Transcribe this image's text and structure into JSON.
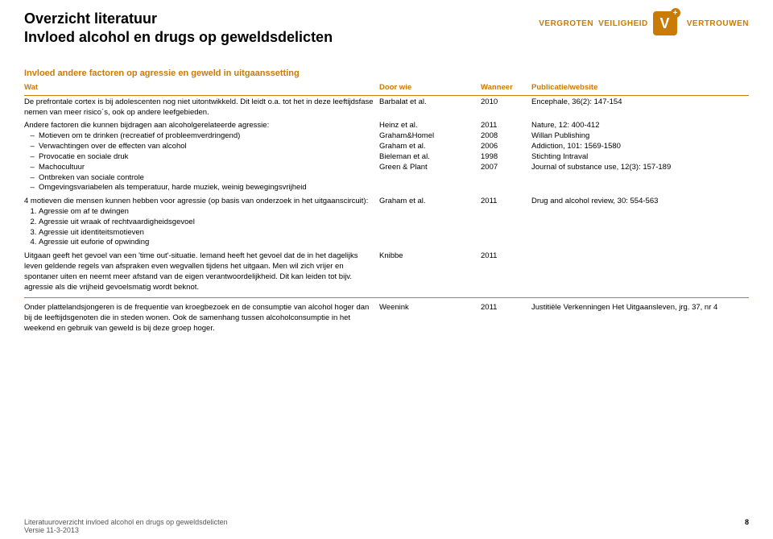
{
  "header": {
    "title_line1": "Overzicht literatuur",
    "title_line2": "Invloed alcohol en drugs op geweldsdelicten",
    "brand_left": "VERGROTEN",
    "brand_mid": "VEILIGHEID",
    "brand_right": "VERTROUWEN",
    "v_glyph": "V",
    "plus_glyph": "+"
  },
  "section_title": "Invloed andere factoren op agressie en geweld in uitgaanssetting",
  "columns": {
    "wat": "Wat",
    "door_wie": "Door wie",
    "wanneer": "Wanneer",
    "pub": "Publicatie/website"
  },
  "rows": [
    {
      "wat_pre": "De prefrontale cortex is bij adolescenten nog niet uitontwikkeld. Dit leidt o.a. tot het in deze leeftijdsfase nemen van meer risico´s, ook op andere leefgebieden.",
      "door": "Barbalat et al.",
      "wanneer": "2010",
      "pub": "Encephale, 36(2): 147-154"
    },
    {
      "wat_pre": "Andere factoren die kunnen bijdragen aan alcoholgerelateerde agressie:",
      "bullets": [
        "Motieven om te drinken (recreatief of probleemverdringend)",
        "Verwachtingen over de effecten van alcohol",
        "Provocatie en sociale druk",
        "Machocultuur",
        "Ontbreken van sociale controle",
        "Omgevingsvariabelen als temperatuur, harde muziek, weinig bewegingsvrijheid"
      ],
      "door": [
        "Heinz et al.",
        "",
        "",
        "Graham&Homel",
        "Graham et al.",
        "Bieleman et al.",
        "Green & Plant"
      ],
      "wanneer": [
        "2011",
        "",
        "",
        "2008",
        "2006",
        "1998",
        "2007"
      ],
      "pub": [
        "Nature, 12: 400-412",
        "",
        "",
        "Willan Publishing",
        "Addiction, 101: 1569-1580",
        "Stichting Intraval",
        "Journal of substance use, 12(3): 157-189"
      ]
    },
    {
      "wat_pre": "4 motieven die mensen kunnen hebben voor agressie (op basis van onderzoek in het uitgaanscircuit):",
      "ordered": [
        "Agressie om af te dwingen",
        "Agressie uit wraak of rechtvaardigheidsgevoel",
        "Agressie uit identiteitsmotieven",
        "Agressie uit euforie of opwinding"
      ],
      "door": "Graham et al.",
      "wanneer": "2011",
      "pub": "Drug and alcohol review, 30: 554-563"
    },
    {
      "wat_pre": "Uitgaan geeft het gevoel van een 'time out'-situatie. Iemand heeft het gevoel dat de in het dagelijks leven geldende regels van afspraken even wegvallen tijdens het uitgaan. Men wil zich vrijer en spontaner uiten en neemt meer afstand van de eigen verantwoordelijkheid. Dit kan leiden tot bijv. agressie als die vrijheid gevoelsmatig wordt beknot.",
      "door": "Knibbe",
      "wanneer": "2011",
      "pub": ""
    },
    {
      "wat_pre": "Onder plattelandsjongeren is de frequentie van kroegbezoek en de consumptie van alcohol hoger dan bij de leeftijdsgenoten die in steden wonen. Ook de samenhang tussen alcoholconsumptie in het weekend en gebruik van geweld is bij deze groep hoger.",
      "door": "Weenink",
      "wanneer": "2011",
      "pub": "Justitiële Verkenningen Het Uitgaansleven, jrg. 37, nr 4"
    }
  ],
  "footer": {
    "line1": "Literatuuroverzicht invloed alcohol en drugs op geweldsdelicten",
    "line2": "Versie 11-3-2013",
    "page": "8"
  },
  "colors": {
    "accent": "#c97b04",
    "text": "#000000",
    "background": "#ffffff"
  }
}
